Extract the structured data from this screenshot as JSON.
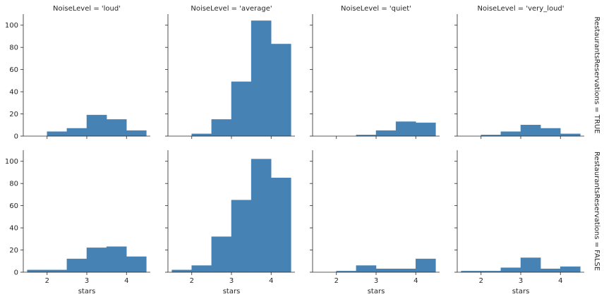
{
  "chart_data": {
    "type": "bar",
    "facet_grid": true,
    "xlabel": "stars",
    "ylabel": "",
    "xlim": [
      1.4,
      4.6
    ],
    "ylim": [
      0,
      110
    ],
    "x_ticks": [
      "2",
      "3",
      "4"
    ],
    "y_ticks": [
      "0",
      "20",
      "40",
      "60",
      "80",
      "100"
    ],
    "bar_color": "#4682b4",
    "column_titles": [
      "NoiseLevel = 'loud'",
      "NoiseLevel = 'average'",
      "NoiseLevel = 'quiet'",
      "NoiseLevel = 'very_loud'"
    ],
    "row_titles": [
      "RestaurantsReservations = TRUE",
      "RestaurantsReservations = FALSE"
    ],
    "panels": [
      [
        {
          "bins": [
            [
              2.0,
              2.5,
              4
            ],
            [
              2.5,
              3.0,
              7
            ],
            [
              3.0,
              3.5,
              19
            ],
            [
              3.5,
              4.0,
              15
            ],
            [
              4.0,
              4.5,
              5
            ]
          ]
        },
        {
          "bins": [
            [
              2.0,
              2.5,
              2
            ],
            [
              2.5,
              3.0,
              15
            ],
            [
              3.0,
              3.5,
              49
            ],
            [
              3.5,
              4.0,
              104
            ],
            [
              4.0,
              4.5,
              83
            ]
          ]
        },
        {
          "bins": [
            [
              2.5,
              3.0,
              1
            ],
            [
              3.0,
              3.5,
              5
            ],
            [
              3.5,
              4.0,
              13
            ],
            [
              4.0,
              4.5,
              12
            ]
          ]
        },
        {
          "bins": [
            [
              2.0,
              2.5,
              1
            ],
            [
              2.5,
              3.0,
              4
            ],
            [
              3.0,
              3.5,
              10
            ],
            [
              3.5,
              4.0,
              7
            ],
            [
              4.0,
              4.5,
              2
            ]
          ]
        }
      ],
      [
        {
          "bins": [
            [
              1.5,
              2.0,
              2
            ],
            [
              2.0,
              2.5,
              2
            ],
            [
              2.5,
              3.0,
              12
            ],
            [
              3.0,
              3.5,
              22
            ],
            [
              3.5,
              4.0,
              23
            ],
            [
              4.0,
              4.5,
              14
            ]
          ]
        },
        {
          "bins": [
            [
              1.5,
              2.0,
              2
            ],
            [
              2.0,
              2.5,
              6
            ],
            [
              2.5,
              3.0,
              32
            ],
            [
              3.0,
              3.5,
              65
            ],
            [
              3.5,
              4.0,
              102
            ],
            [
              4.0,
              4.5,
              85
            ]
          ]
        },
        {
          "bins": [
            [
              2.0,
              2.5,
              1
            ],
            [
              2.5,
              3.0,
              6
            ],
            [
              3.0,
              3.5,
              3
            ],
            [
              3.5,
              4.0,
              3
            ],
            [
              4.0,
              4.5,
              12
            ]
          ]
        },
        {
          "bins": [
            [
              1.5,
              2.0,
              1
            ],
            [
              2.0,
              2.5,
              1
            ],
            [
              2.5,
              3.0,
              4
            ],
            [
              3.0,
              3.5,
              13
            ],
            [
              3.5,
              4.0,
              3
            ],
            [
              4.0,
              4.5,
              5
            ]
          ]
        }
      ]
    ]
  }
}
